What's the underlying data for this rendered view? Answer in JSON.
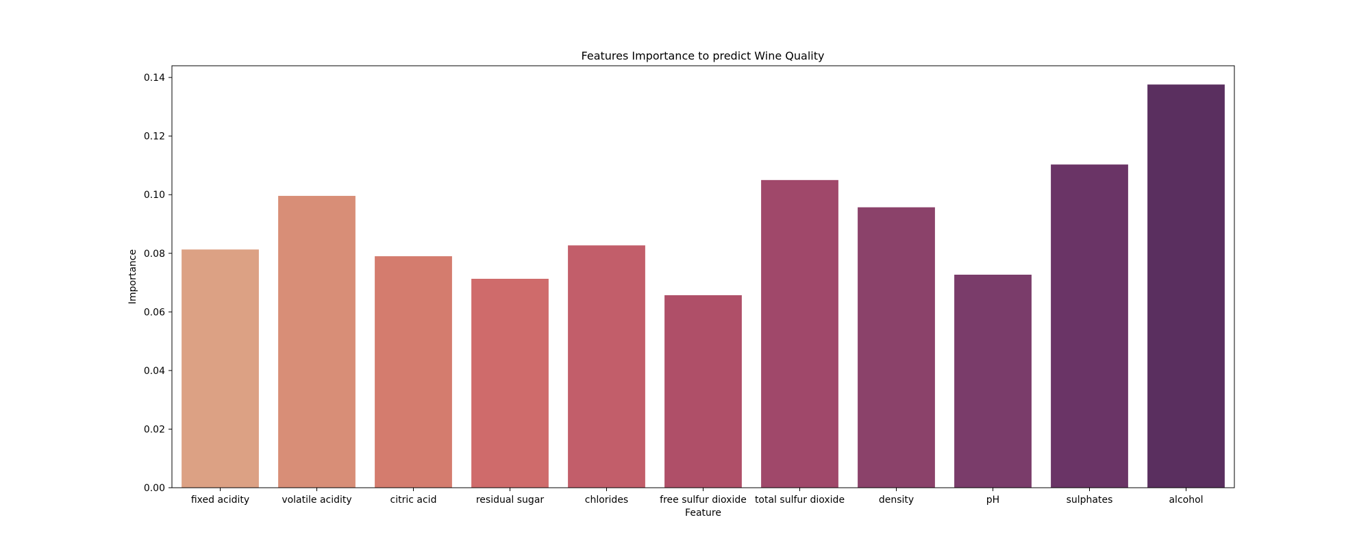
{
  "chart_data": {
    "type": "bar",
    "title": "Features Importance to predict Wine Quality",
    "xlabel": "Feature",
    "ylabel": "Importance",
    "ylim": [
      0,
      0.144
    ],
    "yticks": [
      "0.00",
      "0.02",
      "0.04",
      "0.06",
      "0.08",
      "0.10",
      "0.12",
      "0.14"
    ],
    "categories": [
      "fixed acidity",
      "volatile acidity",
      "citric acid",
      "residual sugar",
      "chlorides",
      "free sulfur dioxide",
      "total sulfur dioxide",
      "density",
      "pH",
      "sulphates",
      "alcohol"
    ],
    "values": [
      0.0813,
      0.0996,
      0.079,
      0.0713,
      0.0827,
      0.0657,
      0.105,
      0.0957,
      0.0727,
      0.1103,
      0.1376
    ],
    "colors": [
      "#dca184",
      "#d88e77",
      "#d47c6e",
      "#cf6b6b",
      "#c25e6a",
      "#af4f68",
      "#a0486a",
      "#8b426a",
      "#7a3c6a",
      "#6a3466",
      "#5a2f5f"
    ],
    "grid": false,
    "legend": "none"
  }
}
